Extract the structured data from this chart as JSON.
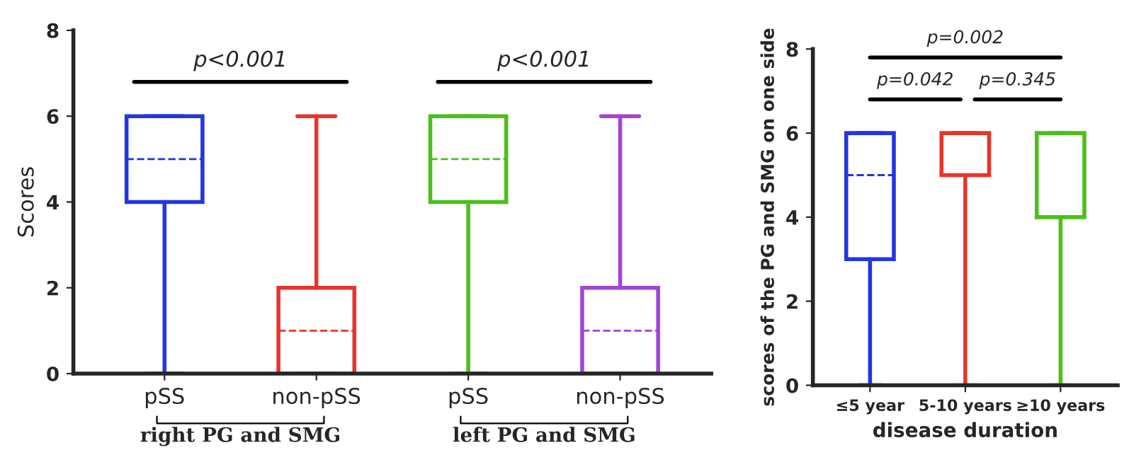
{
  "chart_data": [
    {
      "type": "box",
      "ylabel": "Scores",
      "categories": [
        "pSS",
        "non-pSS",
        "pSS",
        "non-pSS"
      ],
      "colors": [
        "#2336e0",
        "#e8352b",
        "#4cbf1a",
        "#a443d6"
      ],
      "ylim": [
        0,
        8
      ],
      "yticks": [
        0,
        2,
        4,
        6,
        8
      ],
      "grid": false,
      "legend": false,
      "boxes": [
        {
          "low": 0,
          "q1": 4,
          "median": 5,
          "q3": 6,
          "high": 6
        },
        {
          "low": 0,
          "q1": 0,
          "median": 1,
          "q3": 2,
          "high": 6
        },
        {
          "low": 0,
          "q1": 4,
          "median": 5,
          "q3": 6,
          "high": 6
        },
        {
          "low": 0,
          "q1": 0,
          "median": 1,
          "q3": 2,
          "high": 6
        }
      ],
      "annotations": [
        "p<0.001",
        "p<0.001",
        "right PG and SMG",
        "left PG and SMG"
      ]
    },
    {
      "type": "box",
      "xlabel": "disease duration",
      "ylabel": "scores of the PG and SMG on one side",
      "categories": [
        "≤5 year",
        "5-10 years",
        "≥10 years"
      ],
      "colors": [
        "#2336e0",
        "#e8352b",
        "#4cbf1a"
      ],
      "ylim": [
        0,
        8
      ],
      "yticks": [
        0,
        2,
        4,
        6,
        8
      ],
      "grid": false,
      "legend": false,
      "boxes": [
        {
          "low": 0,
          "q1": 3,
          "median": 5,
          "q3": 6,
          "high": 6
        },
        {
          "low": 0,
          "q1": 5,
          "median": 5,
          "q3": 6,
          "high": 6
        },
        {
          "low": 0,
          "q1": 4,
          "median": 6,
          "q3": 6,
          "high": 6
        }
      ],
      "annotations": [
        "p=0.002",
        "p=0.042",
        "p=0.345"
      ]
    }
  ]
}
